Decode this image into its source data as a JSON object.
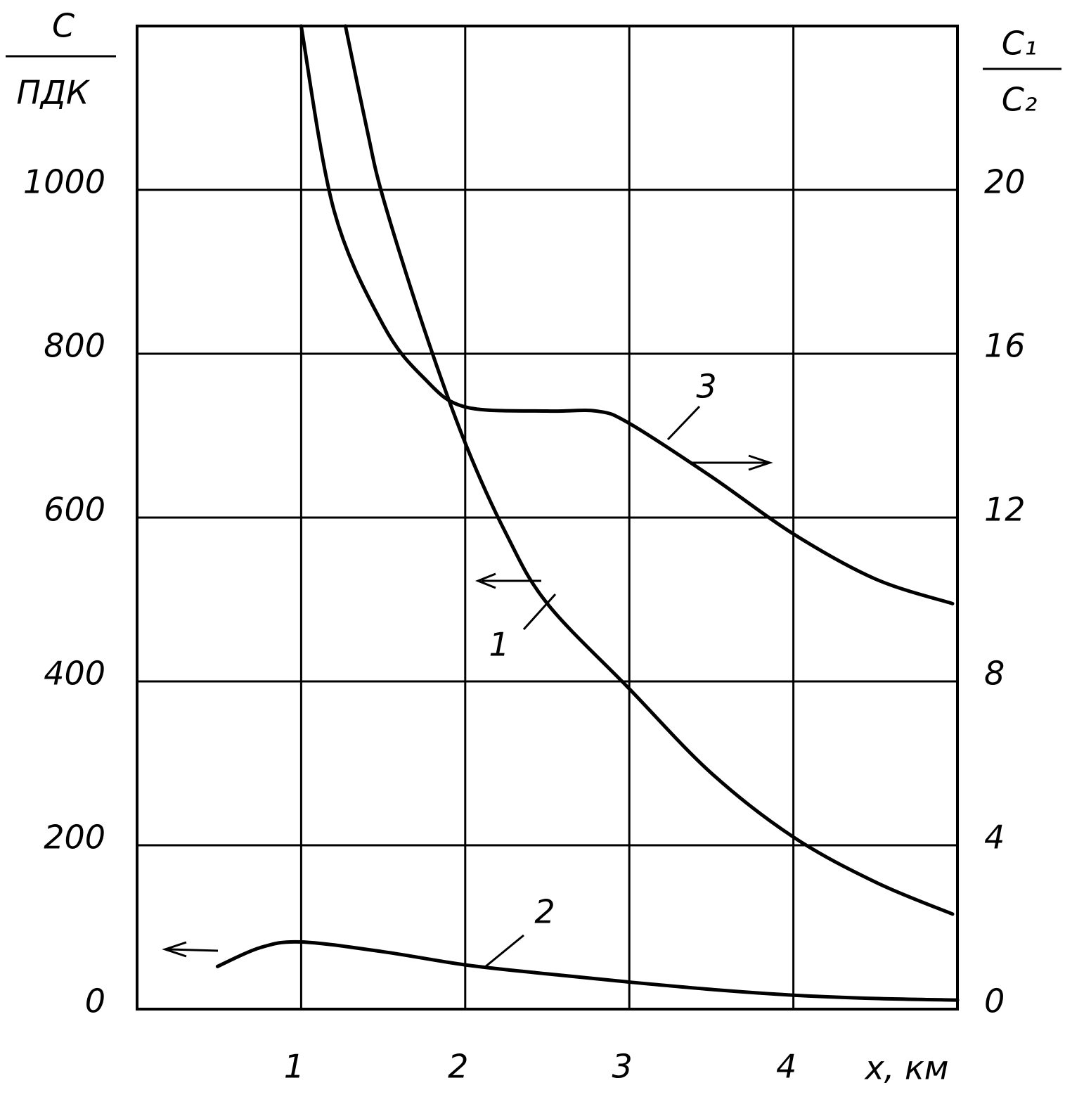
{
  "chart_data": {
    "type": "line",
    "xlabel": "x, км",
    "ylabel": [
      "C",
      "ПДК"
    ],
    "y2label": [
      "C₁",
      "C₂"
    ],
    "xlim": [
      0,
      5
    ],
    "xticks": [
      1,
      2,
      3,
      4
    ],
    "ylim": [
      0,
      1200
    ],
    "yticks": [
      0,
      200,
      400,
      600,
      800,
      1000
    ],
    "y2lim": [
      0,
      24
    ],
    "y2ticks": [
      0,
      4,
      8,
      12,
      16,
      20
    ],
    "grid": true,
    "series": [
      {
        "name": "1",
        "color": "#000000",
        "x": [
          1.27,
          1.4,
          1.5,
          1.75,
          2,
          2.25,
          2.5,
          3,
          3.5,
          4,
          4.5,
          4.97
        ],
        "values": [
          1200,
          1075,
          990,
          830,
          691,
          580,
          495,
          391,
          288,
          210,
          155,
          116
        ]
      },
      {
        "name": "2",
        "color": "#000000",
        "x": [
          0.49,
          0.75,
          1,
          1.5,
          2,
          2.5,
          3,
          3.5,
          4,
          4.5,
          5
        ],
        "values": [
          52,
          75,
          82,
          70,
          54,
          43,
          33,
          24,
          17,
          13,
          11
        ]
      },
      {
        "name": "3",
        "color": "#000000",
        "axis": "y2",
        "x": [
          1,
          1.2,
          1.5,
          1.75,
          2,
          2.5,
          2.8,
          3,
          3.5,
          4,
          4.5,
          4.97
        ],
        "values": [
          24,
          19.5,
          16.7,
          15.4,
          14.7,
          14.6,
          14.6,
          14.3,
          13.0,
          11.6,
          10.5,
          9.9
        ]
      }
    ]
  }
}
